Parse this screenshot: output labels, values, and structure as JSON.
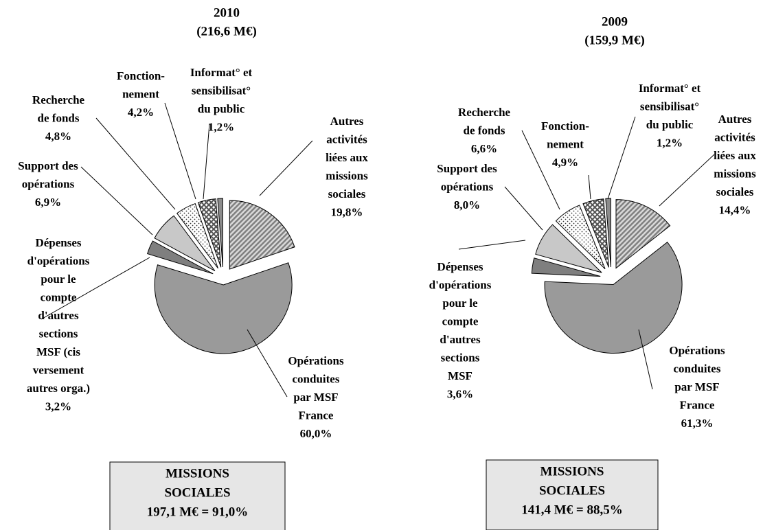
{
  "chart_data": [
    {
      "type": "pie",
      "title": "2010",
      "subtitle": "(216,6 M€)",
      "categories": [
        [
          "Autres",
          "activités",
          "liées aux",
          "missions",
          "sociales"
        ],
        [
          "Opérations",
          "conduites",
          "par MSF",
          "France"
        ],
        [
          "Dépenses",
          "d'opérations",
          "pour le",
          "compte",
          "d'autres",
          "sections",
          "MSF (cis",
          "versement",
          "autres orga.)"
        ],
        [
          "Support des",
          "opérations"
        ],
        [
          "Recherche",
          "de fonds"
        ],
        [
          "Fonction-",
          "nement"
        ],
        [
          "Informat° et",
          "sensibilisat°",
          "du public"
        ]
      ],
      "values": [
        19.8,
        60.0,
        3.2,
        6.9,
        4.8,
        4.2,
        1.2
      ],
      "value_labels": [
        "19,8%",
        "60,0%",
        "3,2%",
        "6,9%",
        "4,8%",
        "4,2%",
        "1,2%"
      ],
      "colors": [
        "#a6a6a6",
        "#9a9a9a",
        "#7f7f7f",
        "#c8c8c8",
        "#ffffff",
        "#ffffff",
        "#8c8c8c"
      ],
      "patterns": [
        "diagonal",
        "none",
        "none",
        "none",
        "dots",
        "cross",
        "none"
      ],
      "annotation": [
        "MISSIONS",
        "SOCIALES",
        "197,1 M€ = 91,0%"
      ]
    },
    {
      "type": "pie",
      "title": "2009",
      "subtitle": "(159,9 M€)",
      "categories": [
        [
          "Autres",
          "activités",
          "liées aux",
          "missions",
          "sociales"
        ],
        [
          "Opérations",
          "conduites",
          "par MSF",
          "France"
        ],
        [
          "Dépenses",
          "d'opérations",
          "pour le",
          "compte",
          "d'autres",
          "sections",
          "MSF"
        ],
        [
          "Support des",
          "opérations"
        ],
        [
          "Recherche",
          "de fonds"
        ],
        [
          "Fonction-",
          "nement"
        ],
        [
          "Informat° et",
          "sensibilisat°",
          "du public"
        ]
      ],
      "values": [
        14.4,
        61.3,
        3.6,
        8.0,
        6.6,
        4.9,
        1.2
      ],
      "value_labels": [
        "14,4%",
        "61,3%",
        "3,6%",
        "8,0%",
        "6,6%",
        "4,9%",
        "1,2%"
      ],
      "colors": [
        "#a6a6a6",
        "#9a9a9a",
        "#7f7f7f",
        "#c8c8c8",
        "#ffffff",
        "#ffffff",
        "#8c8c8c"
      ],
      "patterns": [
        "diagonal",
        "none",
        "none",
        "none",
        "dots",
        "cross",
        "none"
      ],
      "annotation": [
        "MISSIONS",
        "SOCIALES",
        "141,4 M€ = 88,5%"
      ]
    }
  ]
}
